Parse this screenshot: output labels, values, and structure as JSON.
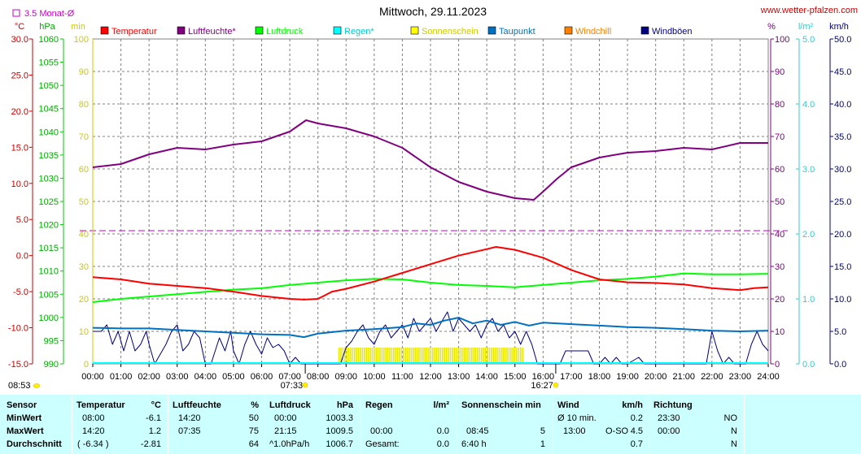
{
  "title": "Mittwoch, 29.11.2023",
  "source_link": "www.wetter-pfalzen.com",
  "avg_legend": "3.5 Monat-Ø",
  "unit_labels": {
    "temp": "°C",
    "pressure": "hPa",
    "minutes": "min",
    "percent": "%",
    "rain": "l/m²",
    "wind": "km/h"
  },
  "legend": [
    {
      "label": "Temperatur",
      "color": "#ff0000"
    },
    {
      "label": "Luftfeuchte*",
      "color": "#800080"
    },
    {
      "label": "Luftdruck",
      "color": "#00ff00"
    },
    {
      "label": "Regen*",
      "color": "#00ffff"
    },
    {
      "label": "Sonnenschein",
      "color": "#ffff00"
    },
    {
      "label": "Taupunkt",
      "color": "#0070c0"
    },
    {
      "label": "Windchill",
      "color": "#ff8000"
    },
    {
      "label": "Windböen",
      "color": "#000080"
    }
  ],
  "axes": {
    "temp_ticks": [
      "30.0",
      "25.0",
      "20.0",
      "15.0",
      "10.0",
      "5.0",
      "0.0",
      "-5.0",
      "-10.0",
      "-15.0"
    ],
    "pressure_ticks": [
      "1060",
      "1055",
      "1050",
      "1045",
      "1040",
      "1035",
      "1030",
      "1025",
      "1020",
      "1015",
      "1010",
      "1005",
      "1000",
      "995",
      "990"
    ],
    "minutes_ticks": [
      "100",
      "90",
      "80",
      "70",
      "60",
      "50",
      "40",
      "30",
      "20",
      "10",
      "0"
    ],
    "percent_ticks": [
      "100",
      "90",
      "80",
      "70",
      "60",
      "50",
      "40",
      "30",
      "20",
      "10",
      "0"
    ],
    "rain_ticks": [
      "5.0",
      "4.0",
      "3.0",
      "2.0",
      "1.0",
      "0.0"
    ],
    "wind_ticks": [
      "50.0",
      "45.0",
      "40.0",
      "35.0",
      "30.0",
      "25.0",
      "20.0",
      "15.0",
      "10.0",
      "5.0",
      "0.0"
    ],
    "time_ticks": [
      "00:00",
      "01:00",
      "02:00",
      "03:00",
      "04:00",
      "05:00",
      "06:00",
      "07:00",
      "08:00",
      "09:00",
      "10:00",
      "11:00",
      "12:00",
      "13:00",
      "14:00",
      "15:00",
      "16:00",
      "17:00",
      "18:00",
      "19:00",
      "20:00",
      "21:00",
      "22:00",
      "23:00",
      "24:00"
    ],
    "sunrise": "07:33",
    "sunset": "16:27",
    "update_time": "08:53"
  },
  "colors": {
    "temp": "#ff0000",
    "humidity": "#800080",
    "pressure": "#00ff00",
    "rain": "#00ffff",
    "sun": "#ffff00",
    "dew": "#0070c0",
    "gust": "#000080",
    "temp_axis": "#cc0000",
    "pressure_axis": "#00cc00",
    "minutes_axis": "#cccc00",
    "percent_axis": "#800080",
    "rain_axis": "#33cccc",
    "wind_axis": "#000080",
    "avg_line": "#cc00cc",
    "stats_bg": "#ccffff"
  },
  "chart_data": {
    "type": "line",
    "title": "Mittwoch, 29.11.2023",
    "x_unit": "hour of day",
    "xlim": [
      0,
      24
    ],
    "monthly_average_percent": 41,
    "series": [
      {
        "name": "Temperatur",
        "unit": "°C",
        "points": [
          [
            0,
            -3.0
          ],
          [
            1,
            -3.3
          ],
          [
            2,
            -3.9
          ],
          [
            3,
            -4.2
          ],
          [
            4,
            -4.5
          ],
          [
            5,
            -5.0
          ],
          [
            6,
            -5.6
          ],
          [
            7,
            -6.0
          ],
          [
            7.5,
            -6.1
          ],
          [
            8,
            -6.0
          ],
          [
            8.5,
            -5.0
          ],
          [
            9,
            -4.6
          ],
          [
            10,
            -3.6
          ],
          [
            11,
            -2.4
          ],
          [
            12,
            -1.2
          ],
          [
            13,
            0.0
          ],
          [
            14,
            0.9
          ],
          [
            14.33,
            1.2
          ],
          [
            15,
            0.8
          ],
          [
            16,
            -0.3
          ],
          [
            17,
            -2.0
          ],
          [
            18,
            -3.3
          ],
          [
            19,
            -3.7
          ],
          [
            20,
            -3.8
          ],
          [
            21,
            -4.0
          ],
          [
            22,
            -4.5
          ],
          [
            23,
            -4.8
          ],
          [
            23.5,
            -4.5
          ],
          [
            24,
            -4.4
          ]
        ]
      },
      {
        "name": "Luftfeuchte*",
        "unit": "%",
        "points": [
          [
            0,
            60.5
          ],
          [
            1,
            61.5
          ],
          [
            2,
            64.5
          ],
          [
            3,
            66.5
          ],
          [
            4,
            66
          ],
          [
            5,
            67.5
          ],
          [
            6,
            68.5
          ],
          [
            7,
            71.5
          ],
          [
            7.58,
            75
          ],
          [
            8,
            74
          ],
          [
            9,
            72.5
          ],
          [
            10,
            70
          ],
          [
            11,
            66.5
          ],
          [
            12,
            60.5
          ],
          [
            13,
            56
          ],
          [
            14,
            53
          ],
          [
            15,
            51
          ],
          [
            15.67,
            50.5
          ],
          [
            16,
            53
          ],
          [
            16.5,
            57
          ],
          [
            17,
            60.5
          ],
          [
            18,
            63.5
          ],
          [
            19,
            65
          ],
          [
            20,
            65.5
          ],
          [
            21,
            66.5
          ],
          [
            22,
            66
          ],
          [
            23,
            68
          ],
          [
            24,
            68
          ]
        ]
      },
      {
        "name": "Luftdruck",
        "unit": "hPa",
        "points": [
          [
            0,
            1003.3
          ],
          [
            1,
            1004
          ],
          [
            2,
            1004.5
          ],
          [
            3,
            1005
          ],
          [
            4,
            1005.5
          ],
          [
            5,
            1006
          ],
          [
            6,
            1006.3
          ],
          [
            7,
            1007
          ],
          [
            8,
            1007.5
          ],
          [
            9,
            1008
          ],
          [
            10,
            1008.3
          ],
          [
            11,
            1008.2
          ],
          [
            12,
            1007.5
          ],
          [
            13,
            1007
          ],
          [
            14,
            1006.8
          ],
          [
            15,
            1006.5
          ],
          [
            16,
            1007
          ],
          [
            17,
            1007.5
          ],
          [
            18,
            1008
          ],
          [
            19,
            1008.3
          ],
          [
            20,
            1008.8
          ],
          [
            21,
            1009.5
          ],
          [
            22,
            1009.3
          ],
          [
            23,
            1009.3
          ],
          [
            24,
            1009.4
          ]
        ]
      },
      {
        "name": "Taupunkt",
        "unit": "°C",
        "points": [
          [
            0,
            -10.0
          ],
          [
            1,
            -10.1
          ],
          [
            2,
            -10.1
          ],
          [
            3,
            -10.3
          ],
          [
            4,
            -10.5
          ],
          [
            5,
            -10.7
          ],
          [
            6,
            -10.9
          ],
          [
            7,
            -11.0
          ],
          [
            7.5,
            -11.3
          ],
          [
            8,
            -10.8
          ],
          [
            9,
            -10.4
          ],
          [
            10,
            -10.2
          ],
          [
            11,
            -9.9
          ],
          [
            11.5,
            -9.4
          ],
          [
            12,
            -9.6
          ],
          [
            12.5,
            -9.0
          ],
          [
            13,
            -8.6
          ],
          [
            13.5,
            -9.4
          ],
          [
            14,
            -9.0
          ],
          [
            14.5,
            -9.6
          ],
          [
            15,
            -9.2
          ],
          [
            15.5,
            -9.7
          ],
          [
            16,
            -9.3
          ],
          [
            17,
            -9.5
          ],
          [
            18,
            -9.7
          ],
          [
            19,
            -9.9
          ],
          [
            20,
            -10.0
          ],
          [
            21,
            -10.2
          ],
          [
            22,
            -10.4
          ],
          [
            23,
            -10.5
          ],
          [
            24,
            -10.4
          ]
        ]
      },
      {
        "name": "Windböen",
        "unit": "km/h",
        "points": [
          [
            0,
            5
          ],
          [
            0.3,
            5
          ],
          [
            0.5,
            6
          ],
          [
            0.7,
            3
          ],
          [
            0.9,
            5
          ],
          [
            1.1,
            2
          ],
          [
            1.3,
            5
          ],
          [
            1.5,
            2
          ],
          [
            1.7,
            3
          ],
          [
            1.9,
            5
          ],
          [
            2.0,
            3
          ],
          [
            2.2,
            0
          ],
          [
            2.4,
            1.5
          ],
          [
            2.6,
            3
          ],
          [
            2.8,
            5
          ],
          [
            3.0,
            6
          ],
          [
            3.2,
            2
          ],
          [
            3.4,
            3
          ],
          [
            3.6,
            5
          ],
          [
            3.8,
            4
          ],
          [
            4.0,
            0
          ],
          [
            4.2,
            0
          ],
          [
            4.5,
            4
          ],
          [
            4.7,
            2
          ],
          [
            4.9,
            5
          ],
          [
            5.0,
            2
          ],
          [
            5.2,
            0
          ],
          [
            5.4,
            3
          ],
          [
            5.6,
            5
          ],
          [
            5.8,
            3
          ],
          [
            6.0,
            1.5
          ],
          [
            6.2,
            4
          ],
          [
            6.4,
            2.5
          ],
          [
            6.6,
            3
          ],
          [
            6.8,
            2
          ],
          [
            7.0,
            0
          ],
          [
            7.2,
            1
          ],
          [
            7.4,
            0
          ],
          [
            7.6,
            0
          ],
          [
            7.8,
            0
          ],
          [
            8.0,
            0
          ],
          [
            8.2,
            0
          ],
          [
            8.4,
            0
          ],
          [
            8.6,
            0
          ],
          [
            8.8,
            0
          ],
          [
            9.0,
            2.5
          ],
          [
            9.2,
            3.5
          ],
          [
            9.4,
            5
          ],
          [
            9.6,
            6
          ],
          [
            9.8,
            4
          ],
          [
            10.0,
            3
          ],
          [
            10.2,
            5
          ],
          [
            10.4,
            6
          ],
          [
            10.6,
            4
          ],
          [
            10.8,
            5
          ],
          [
            11.0,
            6
          ],
          [
            11.2,
            4
          ],
          [
            11.4,
            7
          ],
          [
            11.6,
            5
          ],
          [
            11.8,
            6
          ],
          [
            12.0,
            7
          ],
          [
            12.2,
            5
          ],
          [
            12.4,
            6.5
          ],
          [
            12.6,
            8
          ],
          [
            12.8,
            5
          ],
          [
            13.0,
            7
          ],
          [
            13.2,
            6
          ],
          [
            13.4,
            5
          ],
          [
            13.6,
            6
          ],
          [
            13.8,
            4
          ],
          [
            14.0,
            6
          ],
          [
            14.2,
            7
          ],
          [
            14.4,
            5
          ],
          [
            14.6,
            6
          ],
          [
            14.8,
            4
          ],
          [
            15.0,
            5
          ],
          [
            15.2,
            3
          ],
          [
            15.4,
            5
          ],
          [
            15.6,
            3
          ],
          [
            15.8,
            0
          ],
          [
            16.0,
            0
          ],
          [
            16.2,
            0
          ],
          [
            16.4,
            0
          ],
          [
            16.6,
            0
          ],
          [
            16.8,
            2
          ],
          [
            17.0,
            2
          ],
          [
            17.2,
            2
          ],
          [
            17.4,
            2
          ],
          [
            17.6,
            2
          ],
          [
            17.8,
            0
          ],
          [
            18.0,
            0
          ],
          [
            18.2,
            1
          ],
          [
            18.4,
            0
          ],
          [
            18.6,
            1
          ],
          [
            18.8,
            0
          ],
          [
            19.0,
            0
          ],
          [
            19.4,
            1
          ],
          [
            19.6,
            0
          ],
          [
            20.0,
            0
          ],
          [
            20.5,
            0
          ],
          [
            21.0,
            0
          ],
          [
            21.5,
            0
          ],
          [
            21.8,
            0
          ],
          [
            22.0,
            5
          ],
          [
            22.2,
            2
          ],
          [
            22.4,
            0
          ],
          [
            22.6,
            1
          ],
          [
            22.8,
            0
          ],
          [
            23.0,
            0
          ],
          [
            23.2,
            0
          ],
          [
            23.4,
            3
          ],
          [
            23.6,
            5
          ],
          [
            23.8,
            3
          ],
          [
            24.0,
            2
          ]
        ]
      },
      {
        "name": "Sonnenschein",
        "unit": "min",
        "sunshine_from": 8.75,
        "sunshine_to": 15.33,
        "value": 5
      }
    ]
  },
  "stats": {
    "headers": [
      {
        "name": "Sensor",
        "unit": ""
      },
      {
        "name": "Temperatur",
        "unit": "°C"
      },
      {
        "name": "Luftfeuchte",
        "unit": "%"
      },
      {
        "name": "Luftdruck",
        "unit": "hPa"
      },
      {
        "name": "Regen",
        "unit": "l/m²"
      },
      {
        "name": "Sonnenschein min",
        "unit": ""
      },
      {
        "name": "Wind",
        "unit": "km/h"
      },
      {
        "name": "Richtung",
        "unit": ""
      }
    ],
    "rows": [
      {
        "label": "MinWert",
        "temp_time": "08:00",
        "temp_val": "-6.1",
        "hum_time": "14:20",
        "hum_val": "50",
        "press_time": "00:00",
        "press_val": "1003.3",
        "rain_time": "",
        "rain_val": "",
        "sun_time": "",
        "sun_val": "",
        "wind_time": "Ø 10 min.",
        "wind_extra": "",
        "wind_val": "0.2",
        "dir_time": "23:30",
        "dir_val": "NO"
      },
      {
        "label": "MaxWert",
        "temp_time": "14:20",
        "temp_val": "1.2",
        "hum_time": "07:35",
        "hum_val": "75",
        "press_time": "21:15",
        "press_val": "1009.5",
        "rain_time": "00:00",
        "rain_val": "0.0",
        "sun_time": "08:45",
        "sun_val": "5",
        "wind_time": "13:00",
        "wind_extra": "O-SO",
        "wind_val": "4.5",
        "dir_time": "00:00",
        "dir_val": "N"
      },
      {
        "label": "Durchschnitt",
        "temp_time": "( -6.34 )",
        "temp_val": "-2.81",
        "hum_time": "",
        "hum_val": "64",
        "press_time": "^1.0hPa/h",
        "press_val": "1006.7",
        "rain_time": "Gesamt:",
        "rain_val": "0.0",
        "sun_time": "6:40 h",
        "sun_val": "1",
        "wind_time": "",
        "wind_extra": "",
        "wind_val": "0.7",
        "dir_time": "",
        "dir_val": "N"
      }
    ]
  }
}
